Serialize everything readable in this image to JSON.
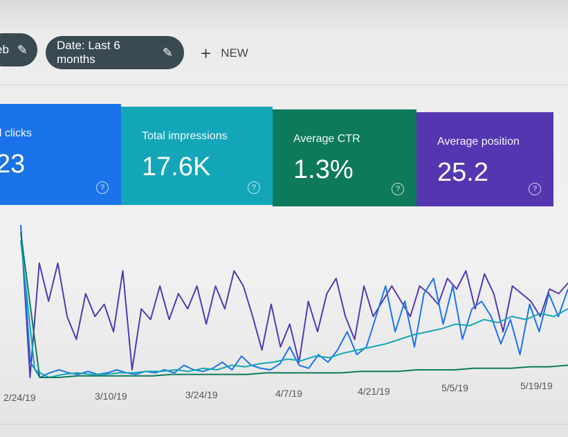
{
  "header": {
    "chip_web": "eb",
    "chip_date": "Date: Last 6 months",
    "new_label": "NEW",
    "plus_glyph": "+",
    "edit_glyph": "✎"
  },
  "cards": [
    {
      "label": "al clicks",
      "value": "23",
      "color": "#1a73e8"
    },
    {
      "label": "Total impressions",
      "value": "17.6K",
      "color": "#13a6b8"
    },
    {
      "label": "Average CTR",
      "value": "1.3%",
      "color": "#0e7a5c"
    },
    {
      "label": "Average position",
      "value": "25.2",
      "color": "#5437b0"
    }
  ],
  "help_glyph": "?",
  "chart_data": {
    "type": "line",
    "x_tick_labels": [
      "2/24/19",
      "3/10/19",
      "3/24/19",
      "4/7/19",
      "4/21/19",
      "5/5/19",
      "5/19/19"
    ],
    "y_range": [
      0,
      100
    ],
    "series": [
      {
        "color": "#5437b0",
        "values": [
          100,
          0,
          75,
          50,
          75,
          40,
          25,
          55,
          40,
          48,
          30,
          70,
          5,
          45,
          38,
          60,
          38,
          55,
          45,
          60,
          35,
          60,
          45,
          70,
          60,
          40,
          18,
          48,
          20,
          35,
          10,
          50,
          30,
          55,
          65,
          40,
          25,
          60,
          40,
          50,
          60,
          50,
          40,
          60,
          55,
          48,
          65,
          58,
          70,
          45,
          68,
          55,
          30,
          60,
          55,
          50,
          40,
          58,
          55,
          62
        ]
      },
      {
        "color": "#1a73e8",
        "values": [
          100,
          10,
          0,
          3,
          5,
          3,
          2,
          4,
          2,
          3,
          5,
          3,
          2,
          4,
          3,
          5,
          3,
          8,
          5,
          4,
          6,
          10,
          5,
          14,
          8,
          6,
          5,
          9,
          20,
          8,
          6,
          15,
          10,
          18,
          30,
          15,
          20,
          40,
          60,
          30,
          50,
          20,
          55,
          65,
          35,
          60,
          25,
          45,
          50,
          40,
          22,
          38,
          15,
          48,
          30,
          55,
          40,
          58
        ]
      },
      {
        "color": "#13a6b8",
        "values": [
          90,
          5,
          0,
          2,
          3,
          2,
          2,
          3,
          3,
          4,
          4,
          5,
          4,
          6,
          5,
          8,
          7,
          9,
          10,
          12,
          11,
          14,
          13,
          16,
          18,
          20,
          22,
          25,
          28,
          30,
          32,
          35,
          34,
          38,
          36,
          40,
          38,
          42,
          40,
          45
        ]
      },
      {
        "color": "#0e7a5c",
        "values": [
          95,
          0,
          0,
          1,
          1,
          1,
          1,
          1,
          2,
          2,
          2,
          2,
          2,
          3,
          3,
          3,
          3,
          3,
          4,
          4,
          4,
          5,
          5,
          5,
          6,
          6,
          6,
          7,
          7,
          8
        ]
      }
    ]
  }
}
